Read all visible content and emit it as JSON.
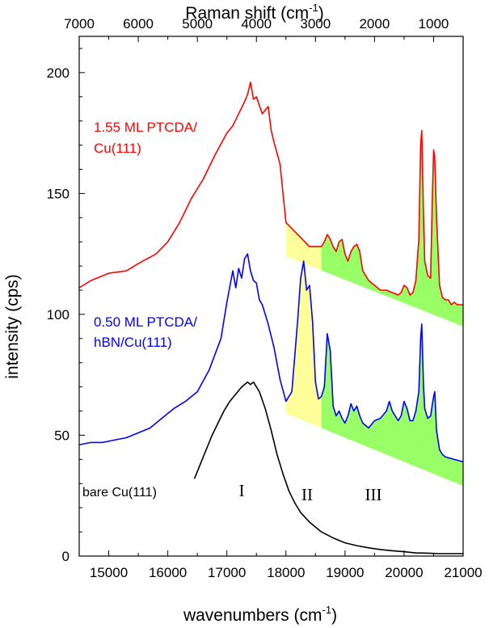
{
  "chart_data": {
    "type": "line",
    "xlabel_bottom": "wavenumbers (cm",
    "xlabel_bottom_sup": "-1",
    "xlabel_bottom_end": ")",
    "xlabel_top": "Raman shift (cm",
    "xlabel_top_sup": "-1",
    "xlabel_top_end": ")",
    "ylabel": "intensity (cps)",
    "xlim": [
      14500,
      21000
    ],
    "ylim": [
      0,
      215
    ],
    "x_ticks": [
      15000,
      16000,
      17000,
      18000,
      19000,
      20000,
      21000
    ],
    "y_ticks": [
      0,
      50,
      100,
      150,
      200
    ],
    "top_ticks": [
      7000,
      6000,
      5000,
      4000,
      3000,
      2000,
      1000
    ],
    "laser_wavenumber": 21500,
    "series": [
      {
        "name": "1.55 ML PTCDA/Cu(111)",
        "label_lines": [
          "1.55 ML PTCDA/",
          "Cu(111)"
        ],
        "color": "#ff0000",
        "x": [
          14500,
          14700,
          15000,
          15300,
          15500,
          15800,
          16000,
          16200,
          16400,
          16600,
          16800,
          17000,
          17100,
          17200,
          17300,
          17350,
          17400,
          17450,
          17500,
          17600,
          17700,
          17750,
          17800,
          17900,
          18000,
          18200,
          18400,
          18600,
          18650,
          18700,
          18750,
          18800,
          18850,
          18900,
          18950,
          19000,
          19050,
          19100,
          19150,
          19200,
          19250,
          19300,
          19400,
          19500,
          19600,
          19700,
          19800,
          19900,
          19950,
          20000,
          20050,
          20100,
          20150,
          20200,
          20250,
          20280,
          20300,
          20330,
          20350,
          20400,
          20450,
          20480,
          20500,
          20520,
          20550,
          20600,
          20650,
          20700,
          20750,
          20800,
          20850,
          20900,
          21000
        ],
        "y": [
          111,
          114,
          117,
          118,
          121,
          125,
          130,
          138,
          148,
          156,
          166,
          175,
          178,
          183,
          188,
          191,
          196,
          189,
          190,
          183,
          186,
          176,
          171,
          162,
          138,
          133,
          128,
          128,
          130,
          133,
          131,
          128,
          126,
          130,
          131,
          125,
          122,
          126,
          128,
          129,
          126,
          118,
          114,
          112,
          110,
          110,
          109,
          108,
          109,
          112,
          111,
          108,
          109,
          114,
          131,
          170,
          176,
          140,
          122,
          116,
          115,
          150,
          168,
          165,
          140,
          112,
          107,
          106,
          106,
          104,
          105,
          104,
          104
        ]
      },
      {
        "name": "0.50 ML PTCDA/hBN/Cu(111)",
        "label_lines": [
          "0.50 ML PTCDA/",
          "hBN/Cu(111)"
        ],
        "color": "#0000ff",
        "x": [
          14500,
          14700,
          14900,
          15100,
          15300,
          15500,
          15700,
          15900,
          16100,
          16300,
          16500,
          16700,
          16900,
          17000,
          17100,
          17150,
          17200,
          17250,
          17300,
          17350,
          17400,
          17450,
          17500,
          17550,
          17600,
          17700,
          17800,
          17900,
          18000,
          18100,
          18200,
          18250,
          18300,
          18350,
          18400,
          18450,
          18500,
          18550,
          18600,
          18650,
          18700,
          18750,
          18800,
          18850,
          18900,
          18950,
          19000,
          19050,
          19100,
          19150,
          19200,
          19250,
          19300,
          19400,
          19500,
          19600,
          19700,
          19750,
          19800,
          19900,
          19950,
          20000,
          20050,
          20100,
          20150,
          20200,
          20250,
          20280,
          20300,
          20330,
          20350,
          20400,
          20450,
          20480,
          20500,
          20520,
          20550,
          20600,
          20650,
          20700,
          21000
        ],
        "y": [
          46,
          47,
          47,
          48,
          49,
          51,
          53,
          57,
          61,
          64,
          68,
          77,
          90,
          105,
          118,
          111,
          119,
          115,
          123,
          125,
          118,
          114,
          113,
          106,
          104,
          96,
          86,
          73,
          64,
          68,
          98,
          115,
          122,
          110,
          112,
          97,
          72,
          65,
          66,
          70,
          92,
          85,
          62,
          58,
          60,
          57,
          55,
          58,
          63,
          60,
          62,
          58,
          55,
          53,
          56,
          57,
          60,
          64,
          60,
          56,
          58,
          64,
          61,
          56,
          56,
          60,
          68,
          90,
          96,
          70,
          61,
          57,
          58,
          63,
          66,
          68,
          52,
          44,
          42,
          41,
          39
        ]
      },
      {
        "name": "bare Cu(111)",
        "label_lines": [
          "bare Cu(111)"
        ],
        "color": "#000000",
        "x": [
          16450,
          16550,
          16650,
          16750,
          16850,
          16950,
          17050,
          17150,
          17250,
          17350,
          17400,
          17450,
          17550,
          17650,
          17750,
          17850,
          17950,
          18050,
          18150,
          18250,
          18400,
          18600,
          18800,
          19000,
          19200,
          19400,
          19600,
          19800,
          20000,
          20200,
          20400,
          20600,
          20800,
          21000
        ],
        "y": [
          32,
          38,
          44,
          50,
          55,
          60,
          64,
          67,
          70,
          72,
          71,
          72,
          68,
          61,
          52,
          42,
          34,
          27,
          22,
          18,
          14,
          10,
          7.5,
          5.5,
          4.3,
          3.4,
          2.7,
          2.2,
          1.8,
          1.3,
          1.2,
          1,
          1,
          1
        ]
      }
    ],
    "regions": [
      {
        "label": "II",
        "color": "#ffff99",
        "x_start": 18000,
        "x_end": 18600
      },
      {
        "label": "III",
        "color": "#99ff66",
        "x_start": 18600,
        "x_end": 21000
      }
    ],
    "region_labels": [
      "I",
      "II",
      "III"
    ]
  }
}
